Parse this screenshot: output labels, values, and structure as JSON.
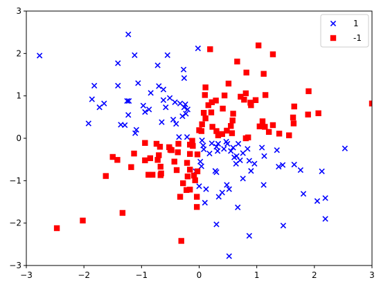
{
  "chart_data": {
    "type": "scatter",
    "title": "",
    "xlabel": "",
    "ylabel": "",
    "xlim": [
      -3,
      3
    ],
    "ylim": [
      -3,
      3
    ],
    "xticks": [
      -3,
      -2,
      -1,
      0,
      1,
      2,
      3
    ],
    "yticks": [
      -3,
      -2,
      -1,
      0,
      1,
      2,
      3
    ],
    "grid": false,
    "legend_position": "top-right",
    "series": [
      {
        "name": "1",
        "marker": "x",
        "color": "#0000ff",
        "points": [
          [
            -2.77,
            1.95
          ],
          [
            -1.23,
            2.45
          ],
          [
            -1.12,
            1.96
          ],
          [
            -0.55,
            1.96
          ],
          [
            -0.02,
            2.12
          ],
          [
            -1.41,
            1.77
          ],
          [
            -0.72,
            1.72
          ],
          [
            -0.27,
            1.62
          ],
          [
            -0.26,
            1.42
          ],
          [
            -1.82,
            1.24
          ],
          [
            -1.41,
            1.24
          ],
          [
            -1.06,
            1.3
          ],
          [
            -0.7,
            1.23
          ],
          [
            -0.62,
            1.15
          ],
          [
            -0.84,
            1.07
          ],
          [
            -0.51,
            0.95
          ],
          [
            -0.33,
            0.82
          ],
          [
            -0.24,
            0.8
          ],
          [
            -1.86,
            0.92
          ],
          [
            -1.65,
            0.82
          ],
          [
            -1.73,
            0.73
          ],
          [
            -1.25,
            0.88
          ],
          [
            -1.22,
            0.88
          ],
          [
            -0.97,
            0.77
          ],
          [
            -0.94,
            0.62
          ],
          [
            -0.87,
            0.68
          ],
          [
            -0.62,
            0.9
          ],
          [
            -0.58,
            0.73
          ],
          [
            -0.42,
            0.85
          ],
          [
            -0.26,
            0.73
          ],
          [
            -0.2,
            0.68
          ],
          [
            -0.23,
            0.58
          ],
          [
            -0.29,
            0.52
          ],
          [
            -0.45,
            0.44
          ],
          [
            -0.4,
            0.34
          ],
          [
            -0.65,
            0.38
          ],
          [
            -1.23,
            0.55
          ],
          [
            -1.36,
            0.32
          ],
          [
            -1.29,
            0.31
          ],
          [
            -1.09,
            0.2
          ],
          [
            -1.11,
            0.12
          ],
          [
            -1.92,
            0.35
          ],
          [
            -0.35,
            0.03
          ],
          [
            -0.21,
            0.03
          ],
          [
            0.05,
            -0.05
          ],
          [
            0.07,
            -0.17
          ],
          [
            0.22,
            -0.12
          ],
          [
            0.3,
            -0.2
          ],
          [
            0.32,
            -0.3
          ],
          [
            0.33,
            -0.13
          ],
          [
            0.43,
            -0.25
          ],
          [
            0.47,
            -0.08
          ],
          [
            0.49,
            -0.13
          ],
          [
            0.55,
            -0.3
          ],
          [
            0.59,
            -0.22
          ],
          [
            0.68,
            -0.13
          ],
          [
            0.65,
            -0.42
          ],
          [
            0.71,
            -0.52
          ],
          [
            0.76,
            -0.35
          ],
          [
            0.84,
            -0.25
          ],
          [
            0.87,
            -0.53
          ],
          [
            0.9,
            -0.77
          ],
          [
            0.96,
            -0.6
          ],
          [
            1.09,
            -0.22
          ],
          [
            1.13,
            -0.42
          ],
          [
            1.35,
            -0.28
          ],
          [
            1.38,
            -0.67
          ],
          [
            1.45,
            -0.63
          ],
          [
            1.12,
            -1.1
          ],
          [
            0.76,
            -0.95
          ],
          [
            0.64,
            -0.6
          ],
          [
            0.48,
            -1.1
          ],
          [
            0.52,
            -1.2
          ],
          [
            0.4,
            -1.28
          ],
          [
            0.34,
            -1.38
          ],
          [
            0.28,
            -0.77
          ],
          [
            0.3,
            -0.8
          ],
          [
            0.12,
            -1.2
          ],
          [
            0.0,
            -1.13
          ],
          [
            0.02,
            -0.55
          ],
          [
            0.04,
            -0.66
          ],
          [
            -0.06,
            -0.78
          ],
          [
            0.1,
            -1.52
          ],
          [
            0.3,
            -2.03
          ],
          [
            0.67,
            -1.63
          ],
          [
            0.87,
            -2.3
          ],
          [
            0.52,
            -2.78
          ],
          [
            1.46,
            -2.06
          ],
          [
            1.65,
            -0.62
          ],
          [
            1.76,
            -0.75
          ],
          [
            1.81,
            -1.31
          ],
          [
            2.05,
            -1.48
          ],
          [
            2.13,
            -0.78
          ],
          [
            2.19,
            -1.41
          ],
          [
            2.19,
            -1.9
          ],
          [
            2.53,
            -0.24
          ],
          [
            0.08,
            -0.26
          ],
          [
            0.18,
            -0.36
          ],
          [
            0.61,
            -0.45
          ]
        ]
      },
      {
        "name": "-1",
        "marker": "s",
        "color": "#ff0000",
        "points": [
          [
            0.19,
            2.1
          ],
          [
            1.03,
            2.19
          ],
          [
            1.28,
            1.98
          ],
          [
            0.66,
            1.81
          ],
          [
            0.82,
            1.55
          ],
          [
            1.12,
            1.52
          ],
          [
            0.51,
            1.29
          ],
          [
            0.11,
            1.2
          ],
          [
            0.1,
            1.02
          ],
          [
            0.44,
            1.01
          ],
          [
            0.29,
            0.89
          ],
          [
            0.22,
            0.85
          ],
          [
            0.16,
            0.78
          ],
          [
            0.41,
            0.7
          ],
          [
            0.21,
            0.61
          ],
          [
            0.08,
            0.6
          ],
          [
            0.11,
            0.47
          ],
          [
            0.05,
            0.33
          ],
          [
            0.23,
            0.27
          ],
          [
            0.0,
            0.19
          ],
          [
            0.04,
            0.17
          ],
          [
            0.3,
            0.17
          ],
          [
            0.33,
            0.07
          ],
          [
            0.4,
            0.1
          ],
          [
            0.48,
            0.18
          ],
          [
            0.55,
            0.29
          ],
          [
            0.58,
            0.42
          ],
          [
            0.59,
            0.58
          ],
          [
            0.57,
            0.12
          ],
          [
            0.72,
            0.98
          ],
          [
            0.78,
            0.91
          ],
          [
            0.81,
            1.06
          ],
          [
            0.89,
            0.84
          ],
          [
            0.9,
            0.78
          ],
          [
            0.98,
            0.9
          ],
          [
            1.15,
            1.02
          ],
          [
            1.05,
            0.28
          ],
          [
            0.85,
            0.02
          ],
          [
            0.81,
            0.0
          ],
          [
            1.1,
            0.4
          ],
          [
            1.14,
            0.27
          ],
          [
            1.21,
            0.15
          ],
          [
            1.28,
            0.31
          ],
          [
            1.39,
            0.11
          ],
          [
            1.56,
            0.07
          ],
          [
            1.63,
            0.49
          ],
          [
            1.64,
            0.35
          ],
          [
            1.65,
            0.75
          ],
          [
            1.89,
            0.56
          ],
          [
            1.9,
            1.11
          ],
          [
            2.07,
            0.59
          ],
          [
            3.0,
            0.82
          ],
          [
            -0.12,
            -0.06
          ],
          [
            -0.16,
            -0.15
          ],
          [
            -0.11,
            -0.18
          ],
          [
            -0.36,
            -0.13
          ],
          [
            -0.52,
            -0.21
          ],
          [
            -0.48,
            -0.28
          ],
          [
            -0.37,
            -0.33
          ],
          [
            -0.16,
            -0.37
          ],
          [
            -0.03,
            -0.38
          ],
          [
            -0.74,
            -0.13
          ],
          [
            -0.68,
            -0.2
          ],
          [
            -0.7,
            -0.4
          ],
          [
            -0.72,
            -0.51
          ],
          [
            -0.85,
            -0.47
          ],
          [
            -1.13,
            -0.36
          ],
          [
            -1.42,
            -0.51
          ],
          [
            -1.5,
            -0.44
          ],
          [
            -0.94,
            -0.11
          ],
          [
            -0.94,
            -0.52
          ],
          [
            -0.67,
            -0.67
          ],
          [
            -0.43,
            -0.55
          ],
          [
            -0.39,
            -0.75
          ],
          [
            -0.21,
            -0.58
          ],
          [
            -0.16,
            -0.74
          ],
          [
            -0.2,
            -0.9
          ],
          [
            -0.09,
            -0.88
          ],
          [
            -0.03,
            -0.78
          ],
          [
            -0.07,
            -0.99
          ],
          [
            -0.88,
            -0.86
          ],
          [
            -0.81,
            -0.86
          ],
          [
            -0.67,
            -0.87
          ],
          [
            -0.66,
            -0.83
          ],
          [
            -1.18,
            -0.68
          ],
          [
            -1.62,
            -0.89
          ],
          [
            -0.16,
            -1.21
          ],
          [
            -0.28,
            -1.06
          ],
          [
            -0.33,
            -1.38
          ],
          [
            -0.04,
            -1.38
          ],
          [
            -0.04,
            -1.62
          ],
          [
            -1.33,
            -1.76
          ],
          [
            -2.02,
            -1.94
          ],
          [
            -2.47,
            -2.12
          ],
          [
            -0.31,
            -2.42
          ],
          [
            -0.22,
            -1.22
          ],
          [
            -0.5,
            -0.27
          ]
        ]
      }
    ]
  }
}
